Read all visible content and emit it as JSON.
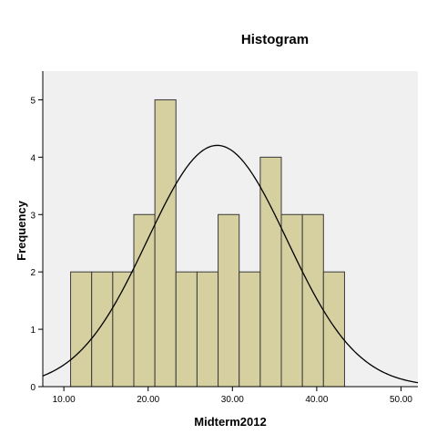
{
  "chart_data": {
    "type": "bar",
    "title": "Histogram",
    "xlabel": "Midterm2012",
    "ylabel": "Frequency",
    "xlim": [
      7.5,
      52.0
    ],
    "ylim": [
      0,
      5.5
    ],
    "x_ticks": [
      "10.00",
      "20.00",
      "30.00",
      "40.00",
      "50.00"
    ],
    "x_tick_values": [
      10,
      20,
      30,
      40,
      50
    ],
    "y_ticks": [
      0,
      1,
      2,
      3,
      4,
      5
    ],
    "bin_width": 2.5,
    "bins": [
      {
        "start": 10.8,
        "end": 13.3,
        "count": 2
      },
      {
        "start": 13.3,
        "end": 15.8,
        "count": 2
      },
      {
        "start": 15.8,
        "end": 18.3,
        "count": 2
      },
      {
        "start": 18.3,
        "end": 20.8,
        "count": 3
      },
      {
        "start": 20.8,
        "end": 23.3,
        "count": 5
      },
      {
        "start": 23.3,
        "end": 25.8,
        "count": 2
      },
      {
        "start": 25.8,
        "end": 28.3,
        "count": 2
      },
      {
        "start": 28.3,
        "end": 30.8,
        "count": 3
      },
      {
        "start": 30.8,
        "end": 33.3,
        "count": 2
      },
      {
        "start": 33.3,
        "end": 35.8,
        "count": 4
      },
      {
        "start": 35.8,
        "end": 38.3,
        "count": 3
      },
      {
        "start": 38.3,
        "end": 40.8,
        "count": 3
      },
      {
        "start": 40.8,
        "end": 43.3,
        "count": 2
      }
    ],
    "normal_curve": {
      "mean": 28.2,
      "std_dev": 8.3,
      "n": 35
    },
    "grid": false,
    "colors": {
      "bar_fill": "#d6d0a0",
      "bar_stroke": "#3a3a3a",
      "plot_background": "#f0f0f0",
      "curve": "#000000"
    }
  }
}
